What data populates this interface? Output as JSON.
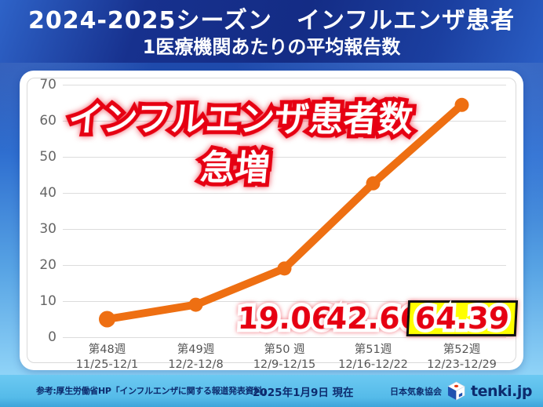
{
  "header": {
    "title": "2024-2025シーズン　インフルエンザ患者",
    "subtitle": "1医療機関あたりの平均報告数"
  },
  "overlay": {
    "line1": "インフルエンザ患者数",
    "line2": "急増"
  },
  "chart_data": {
    "type": "line",
    "title": "2024-2025シーズン インフルエンザ患者 1医療機関あたりの平均報告数",
    "categories": [
      "第48週",
      "第49週",
      "第50 週",
      "第51週",
      "第52週"
    ],
    "category_ranges": [
      "11/25-12/1",
      "12/2-12/8",
      "12/9-12/15",
      "12/16-12/22",
      "12/23-12/29"
    ],
    "values": [
      5.0,
      9.0,
      19.06,
      42.66,
      64.39
    ],
    "point_labels": [
      "",
      "",
      "19.06",
      "42.66",
      "64.39"
    ],
    "highlighted_index": 4,
    "xlabel": "",
    "ylabel": "",
    "ylim": [
      0,
      70
    ],
    "ytick_step": 10,
    "grid": true,
    "legend": "none",
    "line_color": "#ee6f12",
    "label_color": "#e60012",
    "highlight_bg": "#ffff00",
    "highlight_border": "#111111"
  },
  "footer": {
    "source": "参考:厚生労働省HP「インフルエンザに関する報道発表資料」",
    "date": "2025年1月9日 現在",
    "org": "日本気象協会",
    "brand": "tenki.jp"
  }
}
